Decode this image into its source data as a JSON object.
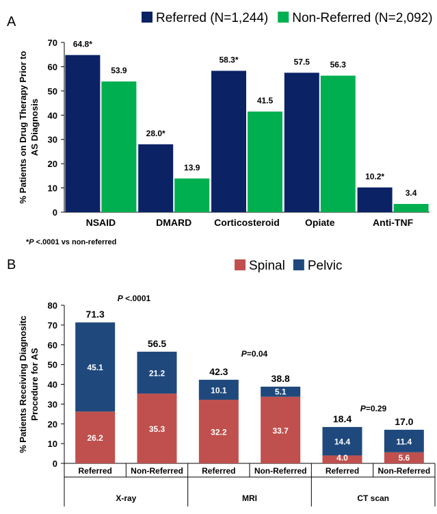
{
  "chart_data": [
    {
      "type": "bar",
      "panel_label": "A",
      "categories": [
        "NSAID",
        "DMARD",
        "Corticosteroid",
        "Opiate",
        "Anti-TNF"
      ],
      "series": [
        {
          "name": "Referred (N=1,244)",
          "color": "#0b2265",
          "values": [
            64.8,
            28.0,
            58.3,
            57.5,
            10.2
          ],
          "labels": [
            "64.8*",
            "28.0*",
            "58.3*",
            "57.5",
            "10.2*"
          ]
        },
        {
          "name": "Non-Referred (N=2,092)",
          "color": "#00b050",
          "values": [
            53.9,
            13.9,
            41.5,
            56.3,
            3.4
          ],
          "labels": [
            "53.9",
            "13.9",
            "41.5",
            "56.3",
            "3.4"
          ]
        }
      ],
      "ylabel_line1": "% Patients on Drug Therapy Prior to",
      "ylabel_line2": "AS Diagnosis",
      "ylim": [
        0,
        70
      ],
      "yticks": [
        0,
        10,
        20,
        30,
        40,
        50,
        60,
        70
      ],
      "footnote_prefix": "*",
      "footnote_p": "P",
      "footnote_rest": " <.0001 vs non-referred",
      "legend_position": "top"
    },
    {
      "type": "stacked-bar",
      "panel_label": "B",
      "groups": [
        {
          "name": "X-ray",
          "p_prefix": "P",
          "p_rest": " <.0001",
          "bars": [
            {
              "label": "Referred",
              "spinal": 26.2,
              "pelvic": 45.1,
              "total": "71.3"
            },
            {
              "label": "Non-Referred",
              "spinal": 35.3,
              "pelvic": 21.2,
              "total": "56.5"
            }
          ]
        },
        {
          "name": "MRI",
          "p_prefix": "P",
          "p_rest": "=0.04",
          "bars": [
            {
              "label": "Referred",
              "spinal": 32.2,
              "pelvic": 10.1,
              "total": "42.3"
            },
            {
              "label": "Non-Referred",
              "spinal": 33.7,
              "pelvic": 5.1,
              "total": "38.8"
            }
          ]
        },
        {
          "name": "CT scan",
          "p_prefix": "P",
          "p_rest": "=0.29",
          "bars": [
            {
              "label": "Referred",
              "spinal": 4.0,
              "pelvic": 14.4,
              "total": "18.4"
            },
            {
              "label": "Non-Referred",
              "spinal": 5.6,
              "pelvic": 11.4,
              "total": "17.0"
            }
          ]
        }
      ],
      "legend": [
        {
          "name": "Spinal",
          "color": "#c0504d"
        },
        {
          "name": "Pelvic",
          "color": "#1f497d"
        }
      ],
      "ylabel_line1": "% Patients Receiving Diagnositc",
      "ylabel_line2": "Procedure for AS",
      "ylim": [
        0,
        80
      ],
      "yticks": [
        0,
        10,
        20,
        30,
        40,
        50,
        60,
        70,
        80
      ],
      "legend_position": "top"
    }
  ]
}
